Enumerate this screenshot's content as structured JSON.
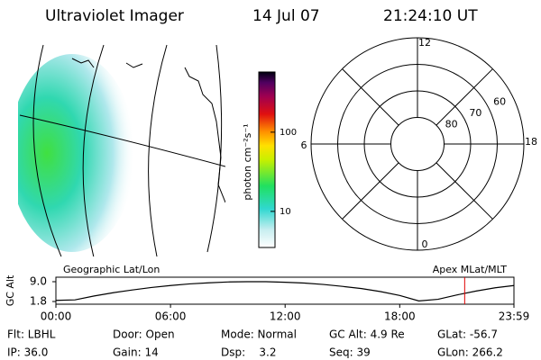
{
  "header": {
    "title": "Ultraviolet Imager",
    "date": "14 Jul 07",
    "time": "21:24:10 UT"
  },
  "colorbar": {
    "label": "photon cm⁻²s⁻¹",
    "log": true,
    "clim": [
      3.5,
      575
    ],
    "ticks": [
      10,
      100
    ]
  },
  "polar": {
    "mlt_ticks": [
      12,
      18,
      6,
      0
    ],
    "lat_lim": [
      90,
      50
    ],
    "lat_ticks": [
      80,
      70,
      60
    ]
  },
  "chart_data": {
    "type": "line",
    "ylabel": "GC Alt",
    "left_label": "Geographic Lat/Lon",
    "right_label": "Apex MLat/MLT",
    "x": [
      0,
      1,
      2,
      3,
      4,
      5,
      6,
      7,
      8,
      9,
      10,
      11,
      12,
      13,
      14,
      15,
      16,
      17,
      18,
      19,
      20,
      21,
      22,
      23,
      23.98
    ],
    "series": [
      {
        "color": "#000000",
        "values": [
          2.2,
          2.4,
          3.8,
          5.0,
          6.0,
          6.9,
          7.6,
          8.2,
          8.6,
          8.9,
          9.0,
          9.0,
          8.8,
          8.5,
          8.0,
          7.3,
          6.5,
          5.4,
          4.0,
          2.0,
          2.6,
          4.2,
          5.6,
          6.8,
          7.6
        ]
      }
    ],
    "xlim": [
      0,
      23.98
    ],
    "xticks": [
      {
        "value": 0,
        "label": "00:00"
      },
      {
        "value": 6,
        "label": "06:00"
      },
      {
        "value": 12,
        "label": "12:00"
      },
      {
        "value": 18,
        "label": "18:00"
      },
      {
        "value": 23.98,
        "label": "23:59"
      }
    ],
    "ylim": [
      1.8,
      9.0
    ],
    "yticks": [
      {
        "value": 9.0,
        "label": "9.0"
      },
      {
        "value": 1.8,
        "label": "1.8"
      }
    ],
    "current_time": 21.4,
    "current_color": "#e00000"
  },
  "footer": {
    "rows": [
      [
        "Flt: LBHL",
        "Door: Open",
        "Mode: Normal",
        "GC Alt: 4.9 Re",
        "GLat: -56.7"
      ],
      [
        "IP: 36.0",
        "Gain: 14",
        "Dsp:    3.2",
        "Seq: 39",
        "GLon: 266.2"
      ]
    ]
  }
}
